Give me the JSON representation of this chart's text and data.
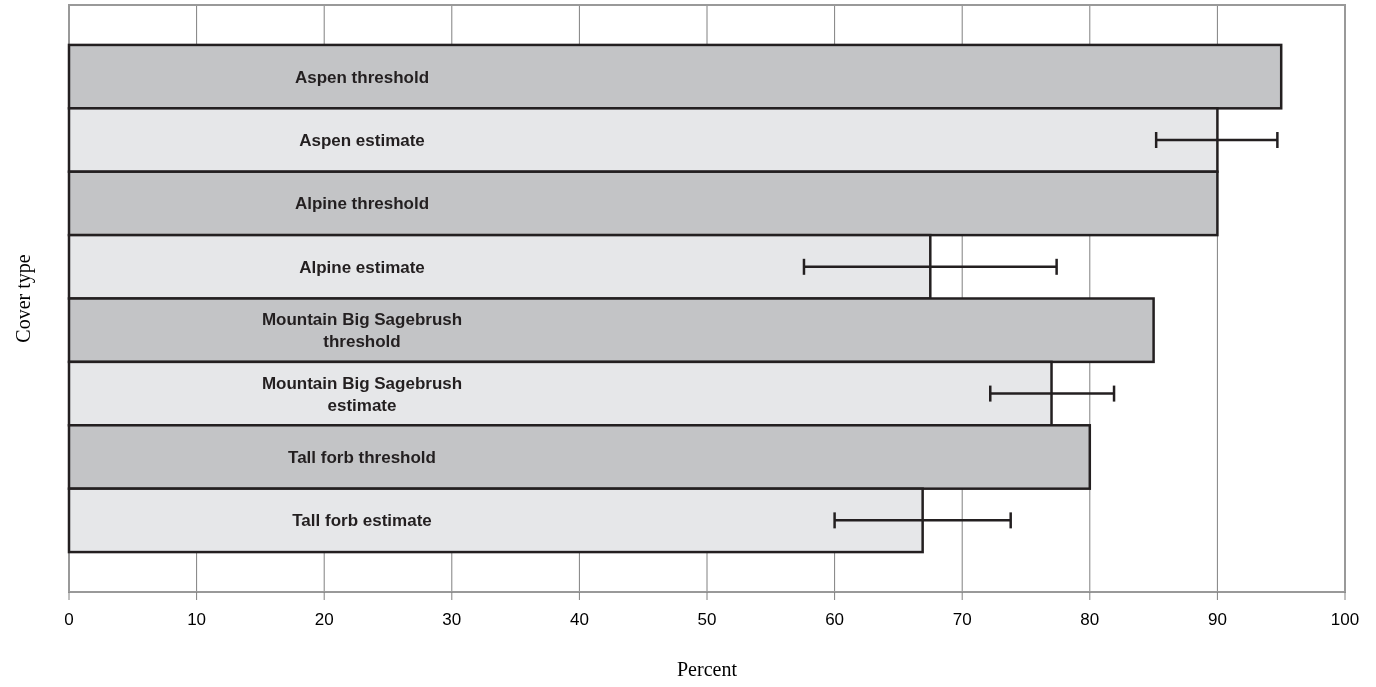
{
  "chart_data": {
    "type": "bar",
    "orientation": "horizontal",
    "xlabel": "Percent",
    "ylabel": "Cover type",
    "categories": [
      "Aspen threshold",
      "Aspen estimate",
      "Alpine threshold",
      "Alpine estimate",
      "Mountain Big Sagebrush threshold",
      "Mountain Big Sagebrush estimate",
      "Tall forb threshold",
      "Tall forb estimate"
    ],
    "values": [
      95,
      90,
      90,
      67.5,
      85,
      77,
      80,
      66.9
    ],
    "colors": [
      "#c3c4c6",
      "#e6e7e9",
      "#c3c4c6",
      "#e6e7e9",
      "#c3c4c6",
      "#e6e7e9",
      "#c3c4c6",
      "#e6e7e9"
    ],
    "errors": [
      null,
      [
        85.2,
        94.7
      ],
      null,
      [
        57.6,
        77.4
      ],
      null,
      [
        72.2,
        81.9
      ],
      null,
      [
        60,
        73.8
      ]
    ],
    "xlim": [
      0,
      100
    ],
    "xticks": [
      0,
      10,
      20,
      30,
      40,
      50,
      60,
      70,
      80,
      90,
      100
    ],
    "grid": "x"
  }
}
